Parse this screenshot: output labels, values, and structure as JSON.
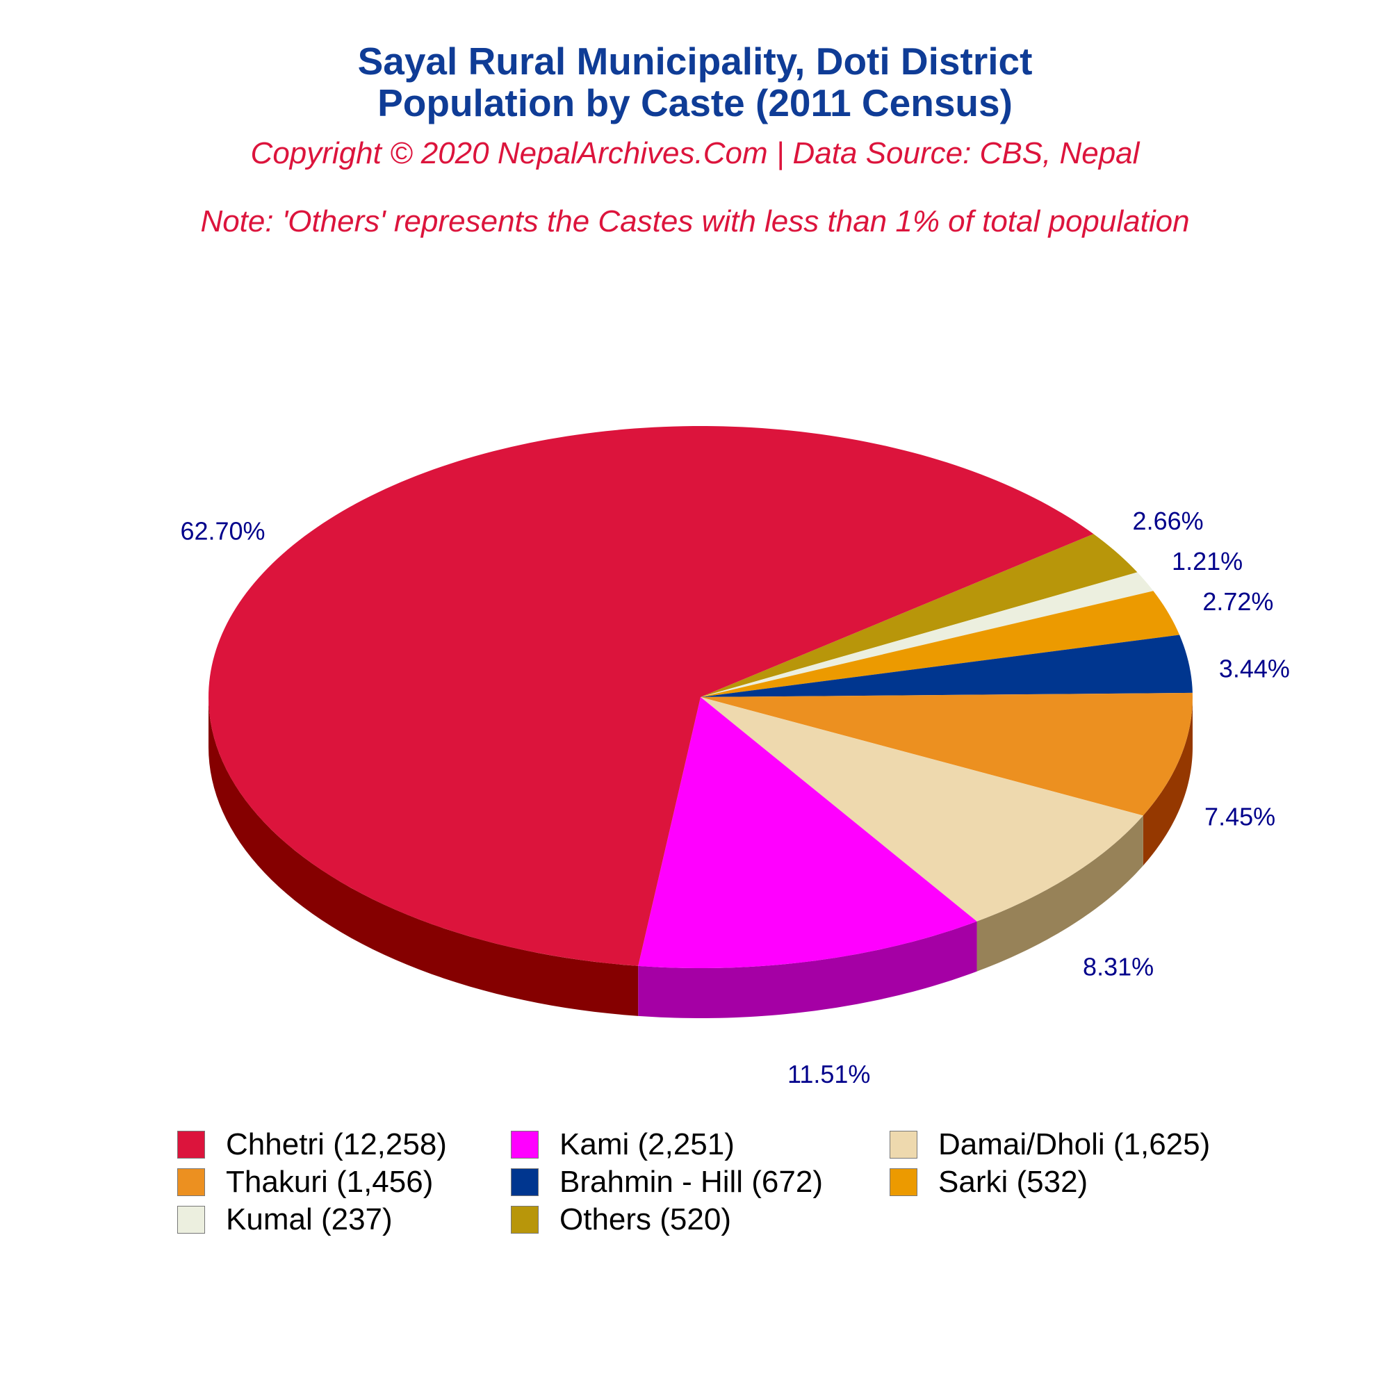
{
  "header": {
    "title_line1": "Sayal Rural Municipality, Doti District",
    "title_line2": "Population by Caste (2011 Census)",
    "copyright": "Copyright © 2020 NepalArchives.Com | Data Source: CBS, Nepal",
    "note": "Note: 'Others' represents the Castes with less than 1% of total population"
  },
  "chart_data": {
    "type": "pie",
    "style": "3d",
    "label_color": "#00008b",
    "categories": [
      "Chhetri",
      "Kami",
      "Damai/Dholi",
      "Thakuri",
      "Brahmin - Hill",
      "Sarki",
      "Kumal",
      "Others"
    ],
    "values": [
      12258,
      2251,
      1625,
      1456,
      672,
      532,
      237,
      520
    ],
    "percent_labels": [
      "62.70%",
      "11.51%",
      "8.31%",
      "7.45%",
      "3.44%",
      "2.72%",
      "1.21%",
      "2.66%"
    ],
    "colors": [
      "#dc143c",
      "#ff00ff",
      "#eed9ae",
      "#ec9020",
      "#00368f",
      "#ec9a00",
      "#ecefdf",
      "#b8960a"
    ],
    "side_colors": [
      "#850000",
      "#a500a5",
      "#978258",
      "#953800",
      "#00005a",
      "#955000",
      "#a0a090",
      "#6b5000"
    ],
    "legend_position": "bottom",
    "legend_labels": [
      "Chhetri (12,258)",
      "Kami (2,251)",
      "Damai/Dholi (1,625)",
      "Thakuri (1,456)",
      "Brahmin - Hill (672)",
      "Sarki (532)",
      "Kumal (237)",
      "Others (520)"
    ]
  }
}
